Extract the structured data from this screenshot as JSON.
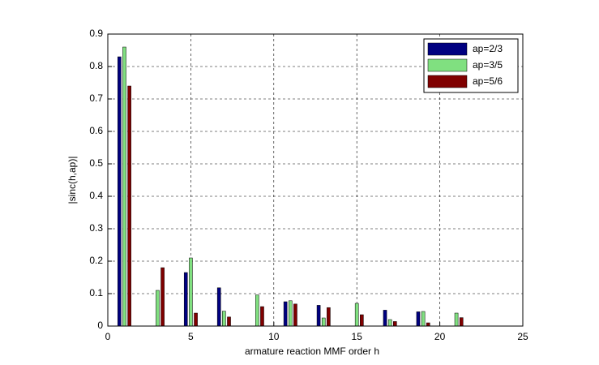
{
  "chart_data": {
    "type": "bar",
    "xlabel": "armature reaction MMF order h",
    "ylabel": "|sinc(h,ap)|",
    "x": [
      1,
      3,
      5,
      7,
      9,
      11,
      13,
      15,
      17,
      19,
      21
    ],
    "series": [
      {
        "name": "ap=2/3",
        "color": "#000080",
        "values": [
          0.83,
          0,
          0.165,
          0.118,
          0,
          0.075,
          0.064,
          0,
          0.049,
          0.044,
          0
        ]
      },
      {
        "name": "ap=3/5",
        "color": "#80e080",
        "values": [
          0.86,
          0.11,
          0.21,
          0.046,
          0.096,
          0.078,
          0.025,
          0.07,
          0.02,
          0.045,
          0.04
        ]
      },
      {
        "name": "ap=5/6",
        "color": "#800000",
        "values": [
          0.74,
          0.18,
          0.04,
          0.028,
          0.06,
          0.068,
          0.057,
          0.035,
          0.014,
          0.01,
          0.026
        ]
      }
    ],
    "xlim": [
      0,
      25
    ],
    "xticks": [
      0,
      5,
      10,
      15,
      20,
      25
    ],
    "ylim": [
      0,
      0.9
    ],
    "yticks": [
      0,
      0.1,
      0.2,
      0.3,
      0.4,
      0.5,
      0.6,
      0.7,
      0.8,
      0.9
    ],
    "grid": true,
    "legend": "northeast"
  }
}
